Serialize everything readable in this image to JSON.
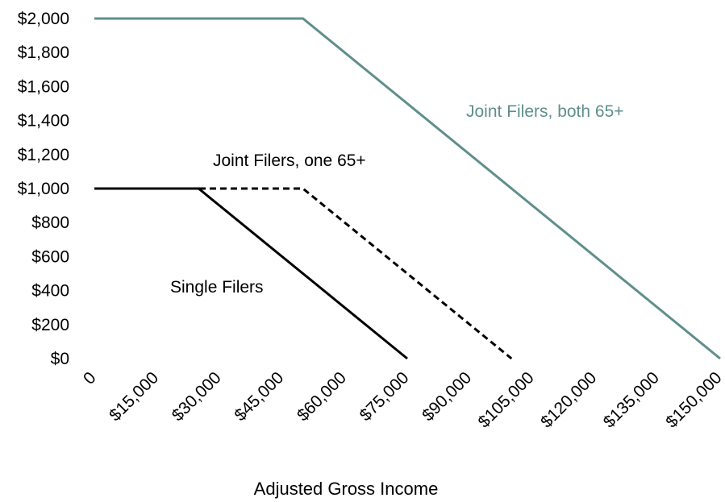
{
  "chart_data": {
    "type": "line",
    "title": "",
    "xlabel": "Adjusted Gross Income",
    "ylabel": "",
    "xlim": [
      0,
      150000
    ],
    "ylim": [
      0,
      2000
    ],
    "grid": false,
    "legend": "none",
    "x_ticks": [
      {
        "value": 0,
        "label": "0"
      },
      {
        "value": 15000,
        "label": "$15,000"
      },
      {
        "value": 30000,
        "label": "$30,000"
      },
      {
        "value": 45000,
        "label": "$45,000"
      },
      {
        "value": 60000,
        "label": "$60,000"
      },
      {
        "value": 75000,
        "label": "$75,000"
      },
      {
        "value": 90000,
        "label": "$90,000"
      },
      {
        "value": 105000,
        "label": "$105,000"
      },
      {
        "value": 120000,
        "label": "$120,000"
      },
      {
        "value": 135000,
        "label": "$135,000"
      },
      {
        "value": 150000,
        "label": "$150,000"
      }
    ],
    "y_ticks": [
      {
        "value": 0,
        "label": "$0"
      },
      {
        "value": 200,
        "label": "$200"
      },
      {
        "value": 400,
        "label": "$400"
      },
      {
        "value": 600,
        "label": "$600"
      },
      {
        "value": 800,
        "label": "$800"
      },
      {
        "value": 1000,
        "label": "$1,000"
      },
      {
        "value": 1200,
        "label": "$1,200"
      },
      {
        "value": 1400,
        "label": "$1,400"
      },
      {
        "value": 1600,
        "label": "$1,600"
      },
      {
        "value": 1800,
        "label": "$1,800"
      },
      {
        "value": 2000,
        "label": "$2,000"
      }
    ],
    "series": [
      {
        "name": "Joint Filers, both 65+",
        "color": "#5f8f8b",
        "style": "solid",
        "points": [
          [
            0,
            2000
          ],
          [
            50000,
            2000
          ],
          [
            150000,
            0
          ]
        ],
        "label_anchor": "start"
      },
      {
        "name": "Joint Filers, one 65+",
        "color": "#000000",
        "style": "dashed",
        "points": [
          [
            0,
            1000
          ],
          [
            50000,
            1000
          ],
          [
            100000,
            0
          ]
        ],
        "label_anchor": "start"
      },
      {
        "name": "Single Filers",
        "color": "#000000",
        "style": "solid",
        "points": [
          [
            0,
            1000
          ],
          [
            25000,
            1000
          ],
          [
            75000,
            0
          ]
        ],
        "label_anchor": "start"
      }
    ]
  }
}
